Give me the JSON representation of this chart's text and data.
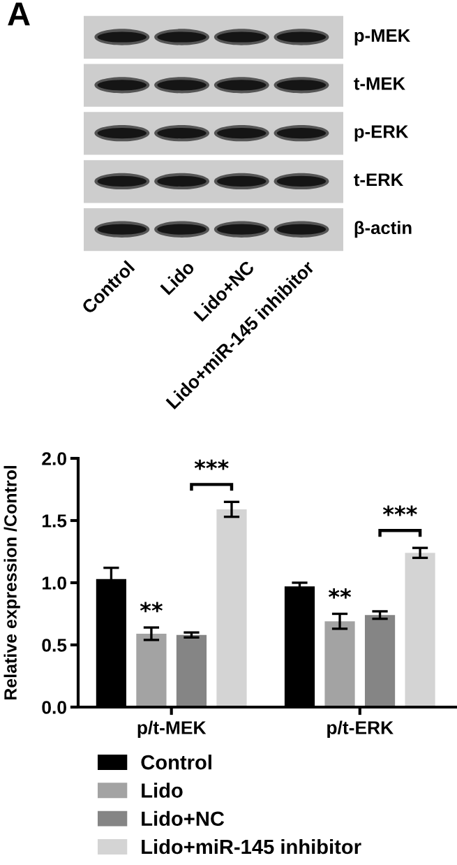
{
  "chart_data": [
    {
      "type": "other",
      "title": "A",
      "categories": [
        "Control",
        "Lido",
        "Lido+NC",
        "Lido+miR-145 inhibitor"
      ],
      "y_categories": [
        "p-MEK",
        "t-MEK",
        "p-ERK",
        "t-ERK",
        "β-actin"
      ]
    },
    {
      "type": "bar",
      "ylabel": "Relative expression /Control",
      "categories": [
        "p/t-MEK",
        "p/t-ERK"
      ],
      "series": [
        {
          "name": "Control",
          "color": "#000000",
          "values": [
            1.03,
            0.97
          ],
          "errors": [
            0.09,
            0.03
          ]
        },
        {
          "name": "Lido",
          "color": "#a3a3a3",
          "values": [
            0.59,
            0.69
          ],
          "errors": [
            0.05,
            0.06
          ]
        },
        {
          "name": "Lido+NC",
          "color": "#858585",
          "values": [
            0.58,
            0.74
          ],
          "errors": [
            0.02,
            0.03
          ]
        },
        {
          "name": "Lido+miR-145 inhibitor",
          "color": "#d4d4d4",
          "values": [
            1.59,
            1.24
          ],
          "errors": [
            0.06,
            0.04
          ]
        }
      ],
      "ylim": [
        0,
        2.0
      ],
      "yticks": [
        {
          "value": 0,
          "label": "0.0"
        },
        0.5,
        {
          "value": 1.0,
          "label": "1.0"
        },
        1.5,
        {
          "value": 2.0,
          "label": "2.0"
        }
      ],
      "legend": "bottom",
      "annotations": [
        "**",
        "***",
        "**",
        "***"
      ]
    }
  ]
}
